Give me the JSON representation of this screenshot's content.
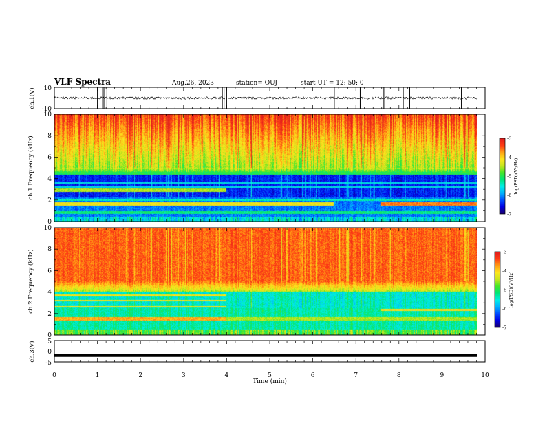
{
  "header": {
    "title": "VLF Spectra",
    "date": "Aug.26, 2023",
    "station": "station= OUJ",
    "start_ut": "start  UT =   12: 50: 0"
  },
  "chart_data": [
    {
      "type": "line",
      "name": "ch.1 waveform",
      "ylabel": "ch.1(V)",
      "ylim": [
        -10,
        10
      ],
      "yticks": [
        "10",
        "-10"
      ],
      "xlim": [
        0,
        10
      ],
      "baseline": 0,
      "spikes_at_min": [
        1.0,
        1.12,
        1.15,
        1.22,
        3.9,
        3.94,
        4.0,
        6.5,
        7.1,
        7.65,
        8.1,
        8.25,
        9.45
      ]
    },
    {
      "type": "heatmap",
      "name": "ch.1 spectrogram",
      "ylabel": "ch.1 Frequency (kHz)",
      "ylim": [
        0,
        10
      ],
      "yticks": [
        "0",
        "2",
        "4",
        "6",
        "8",
        "10"
      ],
      "xlim": [
        0,
        9.85
      ],
      "colorbar": {
        "label": "log(PSD)(V²/Hz)",
        "range": [
          -7,
          -3
        ],
        "ticks": [
          "-3",
          "-4",
          "-5",
          "-6",
          "-7"
        ]
      }
    },
    {
      "type": "heatmap",
      "name": "ch.2 spectrogram",
      "ylabel": "ch.2 Frequency (kHz)",
      "ylim": [
        0,
        10
      ],
      "yticks": [
        "0",
        "2",
        "4",
        "6",
        "8",
        "10"
      ],
      "xlim": [
        0,
        9.85
      ],
      "colorbar": {
        "label": "log(PSD)(V²/Hz)",
        "range": [
          -7,
          -3
        ],
        "ticks": [
          "-3",
          "-4",
          "-5",
          "-6",
          "-7"
        ]
      }
    },
    {
      "type": "line",
      "name": "ch.3 waveform",
      "ylabel": "ch.3(V)",
      "ylim": [
        -5,
        5
      ],
      "yticks": [
        "5",
        "0",
        "-5"
      ],
      "xlim": [
        0,
        10
      ],
      "constant_value": -2.0
    }
  ],
  "x_axis": {
    "label": "Time  (min)",
    "ticks": [
      "0",
      "1",
      "2",
      "3",
      "4",
      "5",
      "6",
      "7",
      "8",
      "9",
      "10"
    ]
  },
  "colors": {
    "cmap": [
      "#1a006e",
      "#0000e6",
      "#0050ff",
      "#00b4ff",
      "#00f0e6",
      "#00e678",
      "#46e628",
      "#c8e61e",
      "#ffe61e",
      "#ffa014",
      "#ff3c14",
      "#e11e1e"
    ]
  }
}
